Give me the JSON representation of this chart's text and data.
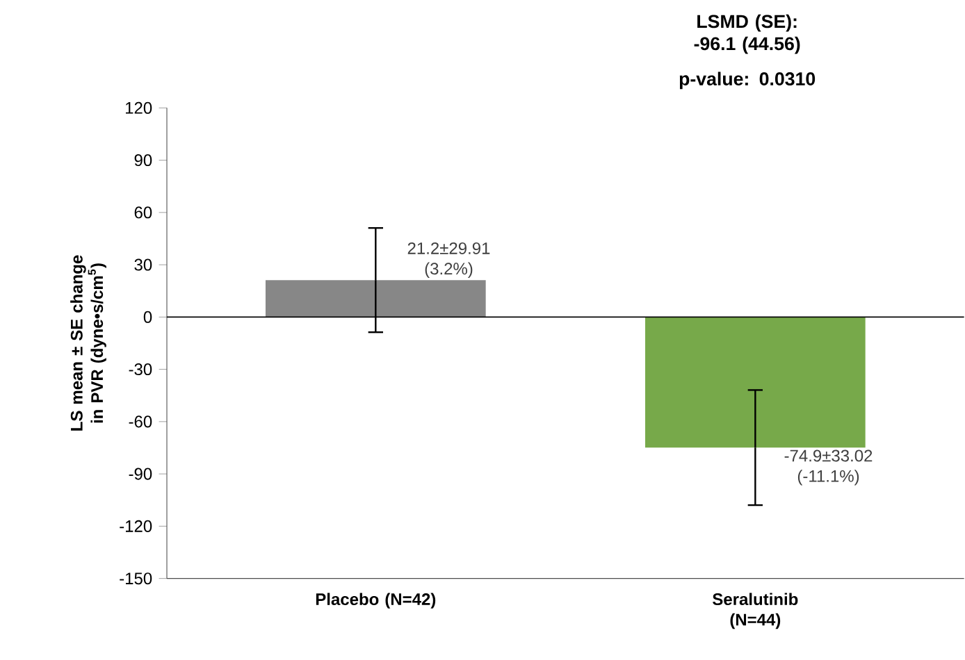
{
  "chart_data": {
    "type": "bar",
    "ylabel": "LS mean ± SE change in PVR (dyne•s/cm$^{5}$)",
    "categories": [
      "Placebo (N=42)",
      "Seralutinib (N=44)"
    ],
    "values": [
      21.2,
      -74.9
    ],
    "errors": [
      29.91,
      33.02
    ],
    "colors": [
      "#878787",
      "#77a94a"
    ],
    "value_labels": [
      "21.2±29.91 (3.2%)",
      "-74.9±33.02 (-11.1%)"
    ],
    "ylim": [
      -150,
      120
    ],
    "yticks": [
      -150,
      -120,
      -90,
      -60,
      -30,
      0,
      30,
      60,
      90,
      120
    ],
    "ref_lines": [
      {
        "axis": "y",
        "value": 0,
        "color": "#000000"
      }
    ],
    "annotations": [
      "LSMD (SE): -96.1 (44.56)",
      "p-value: 0.0310"
    ],
    "grid": false
  }
}
